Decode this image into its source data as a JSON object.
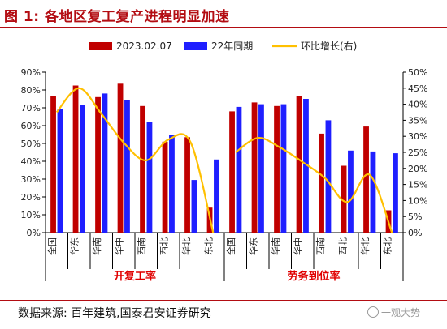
{
  "header": {
    "title": "图 1:  各地区复工复产进程明显加速"
  },
  "footer": {
    "source": "数据来源:  百年建筑,国泰君安证券研究",
    "watermark": "一观大势"
  },
  "colors": {
    "title": "#b30c12",
    "series_2023": "#c00000",
    "series_22": "#1f1fff",
    "series_mom": "#ffc000",
    "group_label": "#e00000"
  },
  "chart_data": {
    "type": "bar",
    "groups": [
      "开复工率",
      "劳务到位率"
    ],
    "categories": [
      "全国",
      "华东",
      "华南",
      "华中",
      "西南",
      "西北",
      "华北",
      "东北",
      "全国",
      "华东",
      "华南",
      "华中",
      "西南",
      "西北",
      "华北",
      "东北"
    ],
    "series": [
      {
        "name": "2023.02.07",
        "axis": "left",
        "values": [
          76.5,
          82.5,
          76,
          83.5,
          71,
          51,
          53.5,
          14,
          68,
          73,
          71,
          76.5,
          55.5,
          37.5,
          59.5,
          12.5
        ]
      },
      {
        "name": "22年同期",
        "axis": "left",
        "values": [
          69.5,
          71.5,
          78,
          74.5,
          62,
          55,
          29.5,
          41,
          70.5,
          72,
          72,
          75,
          63,
          46,
          45.5,
          44.5
        ]
      },
      {
        "name": "环比增长(右)",
        "axis": "right",
        "type": "line",
        "values": [
          37.5,
          45,
          37,
          28,
          22.5,
          29,
          28,
          0,
          25,
          29.5,
          26.5,
          22,
          17,
          9.5,
          18,
          0
        ]
      }
    ],
    "y_left": {
      "min": 0,
      "max": 90,
      "step": 10,
      "ticks": [
        "0%",
        "10%",
        "20%",
        "30%",
        "40%",
        "50%",
        "60%",
        "70%",
        "80%",
        "90%"
      ]
    },
    "y_right": {
      "min": 0,
      "max": 50,
      "step": 5,
      "ticks": [
        "0%",
        "5%",
        "10%",
        "15%",
        "20%",
        "25%",
        "30%",
        "35%",
        "40%",
        "45%",
        "50%"
      ]
    },
    "legend_position": "top",
    "grid": false
  }
}
